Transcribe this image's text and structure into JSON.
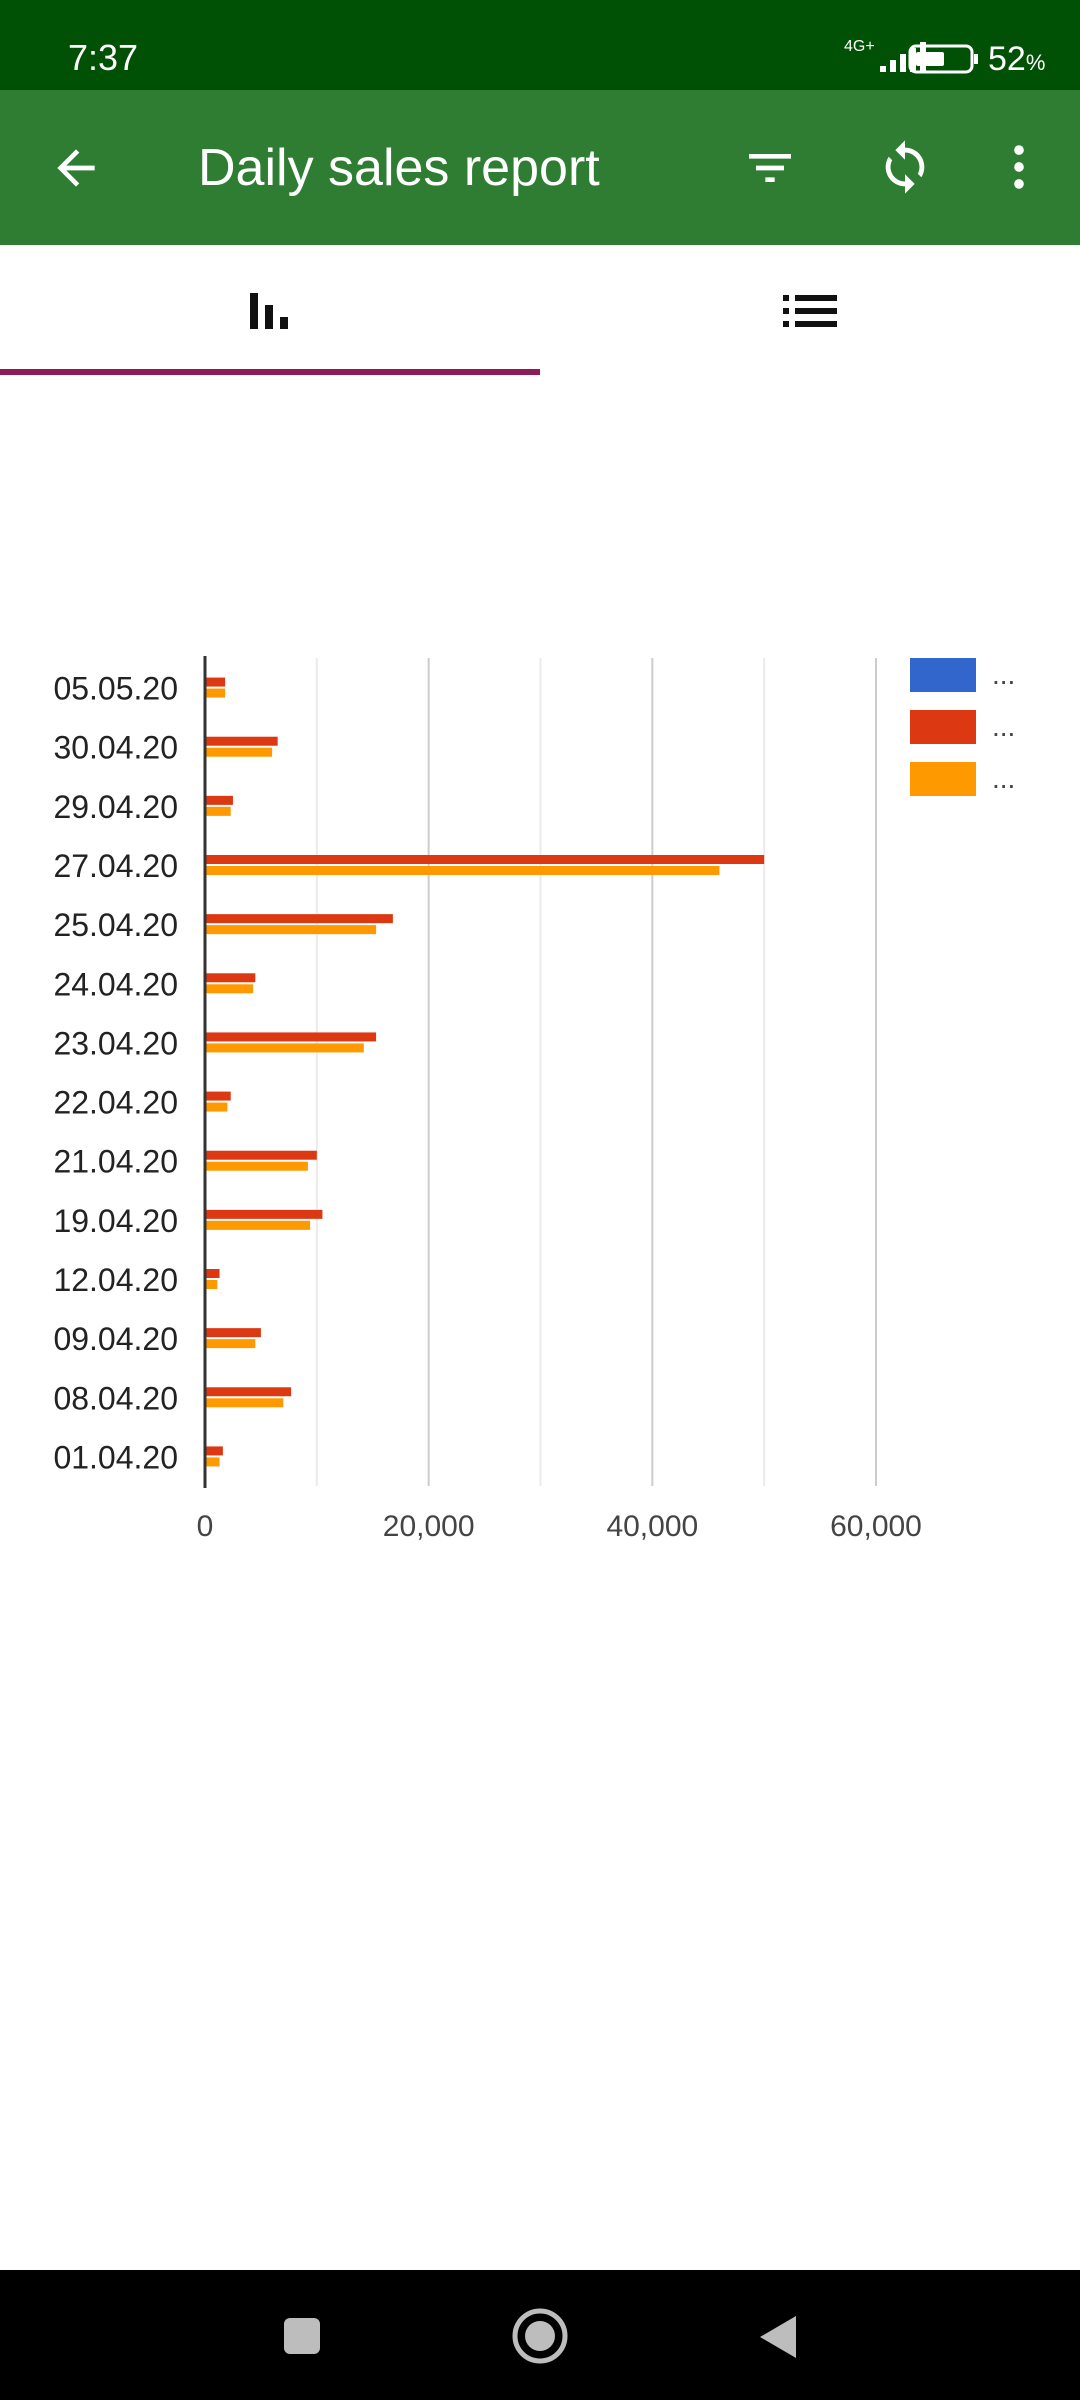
{
  "status_bar": {
    "time": "7:37",
    "network": "4G+",
    "battery": "52",
    "battery_unit": "%"
  },
  "app_bar": {
    "title": "Daily sales report",
    "icons": [
      "back-arrow-icon",
      "filter-icon",
      "refresh-icon",
      "more-vert-icon"
    ]
  },
  "tabs": [
    {
      "icon": "bar-chart-icon",
      "selected": true
    },
    {
      "icon": "list-icon",
      "selected": false
    }
  ],
  "colors": {
    "status_bar": "#005005",
    "app_bar": "#2e7d32",
    "tab_indicator": "#8e1a57",
    "series_1": "#3366cc",
    "series_2": "#dc3912",
    "series_3": "#ff9900"
  },
  "chart_data": {
    "type": "bar",
    "orientation": "horizontal",
    "categories": [
      "05.05.20",
      "30.04.20",
      "29.04.20",
      "27.04.20",
      "25.04.20",
      "24.04.20",
      "23.04.20",
      "22.04.20",
      "21.04.20",
      "19.04.20",
      "12.04.20",
      "09.04.20",
      "08.04.20",
      "01.04.20"
    ],
    "series": [
      {
        "name": "...",
        "values": [
          0,
          0,
          0,
          0,
          0,
          0,
          0,
          0,
          0,
          0,
          0,
          0,
          0,
          0
        ]
      },
      {
        "name": "...",
        "values": [
          1800,
          6500,
          2500,
          50000,
          16800,
          4500,
          15300,
          2300,
          10000,
          10500,
          1300,
          5000,
          7700,
          1600
        ]
      },
      {
        "name": "...",
        "values": [
          1800,
          6000,
          2300,
          46000,
          15300,
          4300,
          14200,
          2000,
          9200,
          9400,
          1100,
          4500,
          7000,
          1300
        ]
      }
    ],
    "x_ticks": [
      0,
      20000,
      40000,
      60000
    ],
    "x_tick_labels": [
      "0",
      "20,000",
      "40,000",
      "60,000"
    ],
    "xlim": [
      0,
      60000
    ],
    "grid": true,
    "legend_position": "top-right"
  },
  "nav_bar": {
    "buttons": [
      "recents-icon",
      "home-icon",
      "back-icon"
    ]
  }
}
